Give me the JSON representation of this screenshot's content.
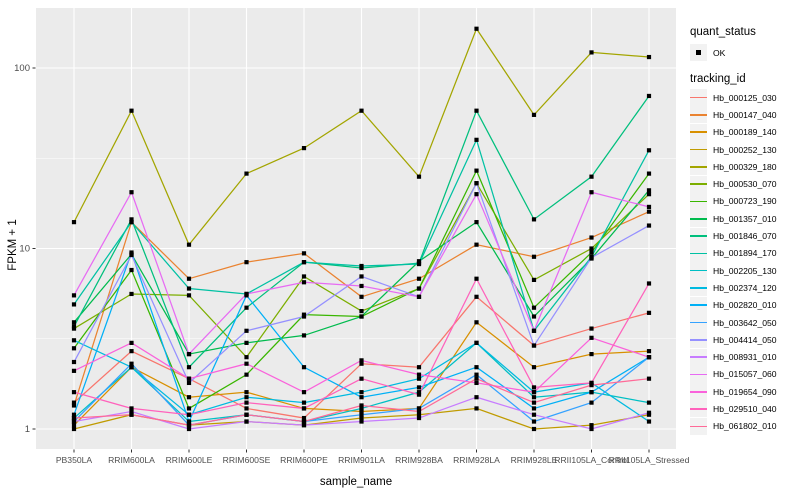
{
  "figure": {
    "panel_bg": "#EBEBEB",
    "grid_color": "#FFFFFF",
    "tick_color": "#333333",
    "axis_text_color": "#4D4D4D",
    "point_color": "#000000"
  },
  "legend": {
    "quant_title": "quant_status",
    "quant_items": [
      {
        "label": "OK",
        "shape": "black-square"
      }
    ],
    "tracking_title": "tracking_id"
  },
  "chart_data": {
    "type": "line",
    "title": "",
    "xlabel": "sample_name",
    "ylabel": "FPKM + 1",
    "y_scale": "log10",
    "y_ticks": [
      1,
      10,
      100
    ],
    "y_minor_ticks": [
      3.162,
      31.62
    ],
    "ylim": [
      0.78,
      210
    ],
    "grid": true,
    "legend_position": "right",
    "point_shape": "filled-square-black",
    "categories": [
      "PB350LA",
      "RRIM600LA",
      "RRIM600LE",
      "RRIM600SE",
      "RRIM600PE",
      "RRIM901LA",
      "RRIM928BA",
      "RRIM928LA",
      "RRIM928LE",
      "RRII105LA_Control",
      "RRII105LA_Stressed"
    ],
    "series": [
      {
        "name": "Hb_000125_030",
        "color": "#F8766D",
        "values": [
          1.4,
          2.7,
          1.9,
          1.3,
          1.15,
          2.3,
          2.2,
          5.4,
          2.9,
          3.6,
          4.4
        ]
      },
      {
        "name": "Hb_000147_040",
        "color": "#EA8331",
        "values": [
          1.35,
          14,
          6.8,
          8.4,
          9.4,
          5.4,
          6.8,
          10.5,
          9.0,
          11.5,
          16
        ]
      },
      {
        "name": "Hb_000189_140",
        "color": "#D89000",
        "values": [
          1.05,
          2.2,
          1.5,
          1.6,
          1.3,
          1.25,
          1.3,
          3.9,
          2.2,
          2.6,
          2.7
        ]
      },
      {
        "name": "Hb_000252_130",
        "color": "#C09B00",
        "values": [
          1.0,
          1.2,
          1.05,
          1.1,
          1.05,
          1.15,
          1.2,
          1.3,
          1.0,
          1.05,
          1.2
        ]
      },
      {
        "name": "Hb_000329_180",
        "color": "#A3A500",
        "values": [
          14,
          58,
          10.5,
          26,
          36,
          58,
          25,
          165,
          55,
          122,
          115
        ]
      },
      {
        "name": "Hb_000530_070",
        "color": "#7CAE00",
        "values": [
          3.6,
          5.6,
          5.5,
          2.5,
          7.0,
          4.5,
          6.0,
          23,
          6.7,
          10,
          20
        ]
      },
      {
        "name": "Hb_000723_190",
        "color": "#39B600",
        "values": [
          2.8,
          7.6,
          1.3,
          2.0,
          4.3,
          4.2,
          6.0,
          27,
          4.7,
          9.5,
          26
        ]
      },
      {
        "name": "Hb_001357_010",
        "color": "#00BB4E",
        "values": [
          3.9,
          9.3,
          2.6,
          3.0,
          3.3,
          4.2,
          8.5,
          14,
          4.2,
          8.8,
          21
        ]
      },
      {
        "name": "Hb_001846_070",
        "color": "#00BF7D",
        "values": [
          3.7,
          14.5,
          2.2,
          4.7,
          8.4,
          7.8,
          8.3,
          58,
          14.5,
          25,
          70
        ]
      },
      {
        "name": "Hb_001894_170",
        "color": "#00C1A3",
        "values": [
          4.9,
          14,
          6.0,
          5.6,
          8.4,
          8.0,
          8.2,
          40,
          3.5,
          9.0,
          35
        ]
      },
      {
        "name": "Hb_002205_130",
        "color": "#00BFC4",
        "values": [
          1.15,
          2.2,
          1.1,
          1.2,
          1.1,
          1.3,
          1.6,
          3.0,
          1.5,
          1.6,
          1.4
        ]
      },
      {
        "name": "Hb_002374_120",
        "color": "#00BAE0",
        "values": [
          3.1,
          2.2,
          1.2,
          1.5,
          1.4,
          1.6,
          1.9,
          3.0,
          1.6,
          1.8,
          1.1
        ]
      },
      {
        "name": "Hb_002820_010",
        "color": "#00B0F6",
        "values": [
          1.2,
          9.5,
          1.1,
          5.5,
          2.2,
          1.5,
          1.7,
          2.2,
          1.3,
          1.6,
          2.5
        ]
      },
      {
        "name": "Hb_003642_050",
        "color": "#35A2FF",
        "values": [
          1.1,
          2.3,
          1.05,
          1.2,
          1.1,
          1.2,
          1.3,
          2.0,
          1.1,
          1.4,
          2.5
        ]
      },
      {
        "name": "Hb_004414_050",
        "color": "#9590FF",
        "values": [
          2.35,
          9.2,
          1.8,
          3.5,
          4.2,
          7.0,
          5.4,
          23,
          2.9,
          8.9,
          13.4
        ]
      },
      {
        "name": "Hb_008931_010",
        "color": "#C77CFF",
        "values": [
          1.1,
          1.25,
          1.0,
          1.1,
          1.05,
          1.1,
          1.15,
          1.5,
          1.2,
          1.0,
          1.23
        ]
      },
      {
        "name": "Hb_015057_060",
        "color": "#E76BF3",
        "values": [
          5.5,
          20.5,
          2.6,
          5.6,
          6.5,
          6.2,
          5.4,
          20,
          3.5,
          20.5,
          17
        ]
      },
      {
        "name": "Hb_019654_090",
        "color": "#FA62DB",
        "values": [
          2.1,
          3.0,
          1.9,
          2.3,
          1.6,
          2.4,
          2.0,
          1.8,
          1.6,
          3.2,
          2.5
        ]
      },
      {
        "name": "Hb_029510_040",
        "color": "#FF62BC",
        "values": [
          1.6,
          1.3,
          1.2,
          1.4,
          1.3,
          1.9,
          1.55,
          6.8,
          1.7,
          1.8,
          6.4
        ]
      },
      {
        "name": "Hb_061802_010",
        "color": "#FF6A98",
        "values": [
          1.15,
          1.2,
          1.05,
          1.2,
          1.1,
          1.35,
          1.25,
          1.9,
          1.4,
          1.75,
          1.9
        ]
      }
    ]
  }
}
